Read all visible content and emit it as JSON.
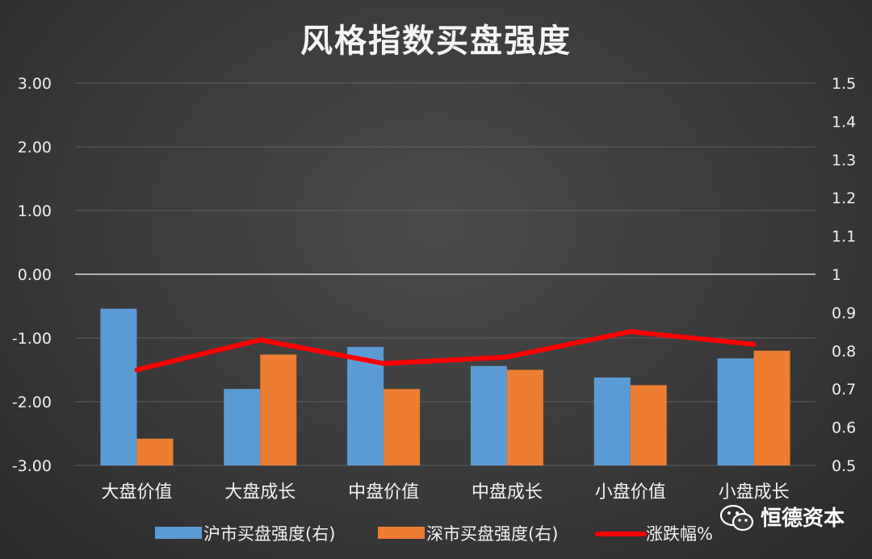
{
  "chart_data": {
    "type": "bar",
    "title": "风格指数买盘强度",
    "categories": [
      "大盘价值",
      "大盘成长",
      "中盘价值",
      "中盘成长",
      "小盘价值",
      "小盘成长"
    ],
    "y_left": {
      "ylim": [
        -3,
        3
      ],
      "ticks": [
        "3.00",
        "2.00",
        "1.00",
        "0.00",
        "-1.00",
        "-2.00",
        "-3.00"
      ],
      "tick_values": [
        3,
        2,
        1,
        0,
        -1,
        -2,
        -3
      ]
    },
    "y_right": {
      "ylim": [
        0.5,
        1.5
      ],
      "ticks": [
        "1.5",
        "1.4",
        "1.3",
        "1.2",
        "1.1",
        "1",
        "0.9",
        "0.8",
        "0.7",
        "0.6",
        "0.5"
      ],
      "tick_values": [
        1.5,
        1.4,
        1.3,
        1.2,
        1.1,
        1.0,
        0.9,
        0.8,
        0.7,
        0.6,
        0.5
      ]
    },
    "series": [
      {
        "name": "沪市买盘强度(右)",
        "type": "bar",
        "axis": "right",
        "color": "#5b9bd5",
        "values": [
          0.91,
          0.7,
          0.81,
          0.76,
          0.73,
          0.78
        ]
      },
      {
        "name": "深市买盘强度(右)",
        "type": "bar",
        "axis": "right",
        "color": "#ed7d31",
        "values": [
          0.57,
          0.79,
          0.7,
          0.75,
          0.71,
          0.8
        ]
      },
      {
        "name": "涨跌幅%",
        "type": "line",
        "axis": "left",
        "color": "#ff0000",
        "values": [
          -1.5,
          -1.03,
          -1.4,
          -1.3,
          -0.9,
          -1.1
        ]
      }
    ],
    "legend_position": "bottom",
    "grid": true
  },
  "watermark": {
    "text": "恒德资本",
    "icon": "wechat-icon"
  }
}
